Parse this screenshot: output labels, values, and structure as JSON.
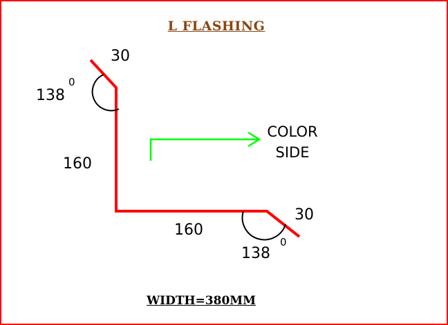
{
  "title": "L  FLASHING",
  "dimensions": {
    "top_lip": "30",
    "top_angle": "138",
    "top_angle_unit": "0",
    "vertical": "160",
    "horizontal": "160",
    "bottom_lip": "30",
    "bottom_angle": "138",
    "bottom_angle_unit": "0"
  },
  "color_side": {
    "line1": "COLOR",
    "line2": "SIDE"
  },
  "width_label": "WIDTH=380MM",
  "colors": {
    "border": "#ff0000",
    "profile": "#ff0000",
    "arrow": "#00ff00",
    "title": "#8b4513"
  }
}
